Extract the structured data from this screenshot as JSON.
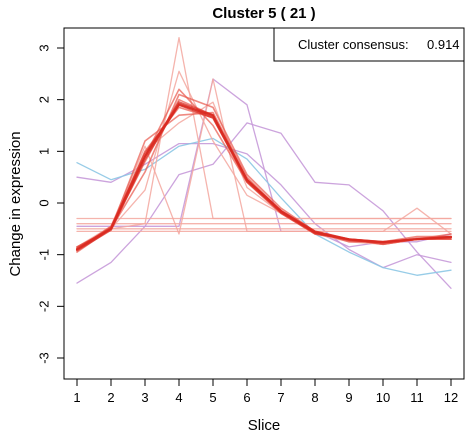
{
  "chart_data": {
    "type": "line",
    "title": "Cluster 5 ( 21 )",
    "xlabel": "Slice",
    "ylabel": "Change in expression",
    "x": [
      1,
      2,
      3,
      4,
      5,
      6,
      7,
      8,
      9,
      10,
      11,
      12
    ],
    "xlim": [
      1,
      12
    ],
    "ylim": [
      -3.3,
      3.3
    ],
    "yticks": [
      -3,
      -2,
      -1,
      0,
      1,
      2,
      3
    ],
    "grid": false,
    "legend": {
      "placement": "top-right",
      "label": "Cluster consensus:",
      "value": "0.914"
    },
    "colors": {
      "core": "#d92b22",
      "strong": "#e8574c",
      "light": "#f3a79f",
      "lilac": "#c79ad9",
      "cyan": "#8cc6e4"
    },
    "series": [
      {
        "color": "lilac",
        "values": [
          -1.55,
          -1.15,
          -0.45,
          0.55,
          0.75,
          1.55,
          1.35,
          0.4,
          0.35,
          -0.15,
          -0.95,
          -1.65
        ]
      },
      {
        "color": "lilac",
        "values": [
          0.5,
          0.4,
          0.75,
          1.15,
          1.15,
          0.95,
          0.35,
          -0.4,
          -0.9,
          -1.25,
          -1.0,
          -1.15
        ]
      },
      {
        "color": "lilac",
        "values": [
          -0.45,
          -0.45,
          -0.45,
          -0.45,
          2.4,
          1.9,
          -0.55,
          -0.55,
          -0.85,
          -0.75,
          -0.75,
          -0.6
        ]
      },
      {
        "color": "cyan",
        "values": [
          0.78,
          0.45,
          0.65,
          1.1,
          1.25,
          0.85,
          0.1,
          -0.6,
          -0.95,
          -1.25,
          -1.4,
          -1.3
        ]
      },
      {
        "color": "light",
        "values": [
          -0.3,
          -0.3,
          -0.3,
          -0.3,
          -0.3,
          -0.3,
          -0.3,
          -0.3,
          -0.3,
          -0.3,
          -0.3,
          -0.3
        ]
      },
      {
        "color": "light",
        "values": [
          -0.4,
          -0.4,
          -0.4,
          -0.4,
          -0.4,
          -0.4,
          -0.4,
          -0.4,
          -0.4,
          -0.4,
          -0.4,
          -0.4
        ]
      },
      {
        "color": "light",
        "values": [
          -0.5,
          -0.5,
          -0.5,
          -0.5,
          -0.5,
          -0.5,
          -0.5,
          -0.5,
          -0.5,
          -0.5,
          -0.5,
          -0.5
        ]
      },
      {
        "color": "light",
        "values": [
          -0.55,
          -0.55,
          -0.55,
          -0.55,
          -0.55,
          -0.55,
          -0.55,
          -0.55,
          -0.55,
          -0.55,
          -0.55,
          -0.55
        ]
      },
      {
        "color": "light",
        "values": [
          -0.85,
          -0.5,
          -0.4,
          3.2,
          -0.3,
          -0.3,
          -0.3,
          -0.3,
          -0.3,
          -0.3,
          -0.3,
          -0.3
        ]
      },
      {
        "color": "light",
        "values": [
          -0.9,
          -0.45,
          1.1,
          -0.6,
          2.4,
          -0.55,
          -0.55,
          -0.55,
          -0.55,
          -0.55,
          -0.1,
          -0.6
        ]
      },
      {
        "color": "light",
        "values": [
          -0.9,
          -0.5,
          0.25,
          2.55,
          1.2,
          0.15,
          -0.2,
          -0.55,
          -0.7,
          -0.75,
          -0.7,
          -0.7
        ]
      },
      {
        "color": "light",
        "values": [
          -0.85,
          -0.45,
          1.0,
          1.55,
          1.95,
          0.3,
          -0.2,
          -0.6,
          -0.75,
          -0.8,
          -0.7,
          -0.65
        ]
      },
      {
        "color": "strong",
        "values": [
          -0.85,
          -0.5,
          0.6,
          2.1,
          1.85,
          0.55,
          -0.1,
          -0.55,
          -0.7,
          -0.75,
          -0.65,
          -0.65
        ]
      },
      {
        "color": "strong",
        "values": [
          -0.9,
          -0.45,
          0.9,
          2.2,
          1.5,
          0.4,
          -0.2,
          -0.6,
          -0.7,
          -0.8,
          -0.7,
          -0.7
        ]
      },
      {
        "color": "strong",
        "values": [
          -0.85,
          -0.5,
          1.2,
          1.7,
          1.75,
          0.5,
          -0.15,
          -0.55,
          -0.75,
          -0.75,
          -0.7,
          -0.6
        ]
      },
      {
        "color": "strong",
        "values": [
          -0.95,
          -0.5,
          1.0,
          1.85,
          1.65,
          0.4,
          -0.2,
          -0.6,
          -0.7,
          -0.8,
          -0.7,
          -0.65
        ]
      },
      {
        "color": "strong",
        "values": [
          -0.9,
          -0.5,
          0.8,
          2.0,
          1.7,
          0.45,
          -0.15,
          -0.6,
          -0.7,
          -0.75,
          -0.7,
          -0.7
        ]
      },
      {
        "color": "core",
        "values": [
          -0.9,
          -0.5,
          0.9,
          1.95,
          1.7,
          0.45,
          -0.15,
          -0.55,
          -0.7,
          -0.75,
          -0.7,
          -0.65
        ]
      },
      {
        "color": "core",
        "values": [
          -0.88,
          -0.48,
          0.95,
          1.9,
          1.65,
          0.45,
          -0.18,
          -0.58,
          -0.72,
          -0.77,
          -0.7,
          -0.66
        ]
      },
      {
        "color": "core",
        "values": [
          -0.92,
          -0.52,
          0.85,
          1.92,
          1.68,
          0.42,
          -0.17,
          -0.57,
          -0.71,
          -0.76,
          -0.69,
          -0.67
        ]
      },
      {
        "color": "core",
        "values": [
          -0.9,
          -0.5,
          0.9,
          1.9,
          1.7,
          0.45,
          -0.15,
          -0.57,
          -0.7,
          -0.76,
          -0.7,
          -0.66
        ]
      }
    ]
  }
}
